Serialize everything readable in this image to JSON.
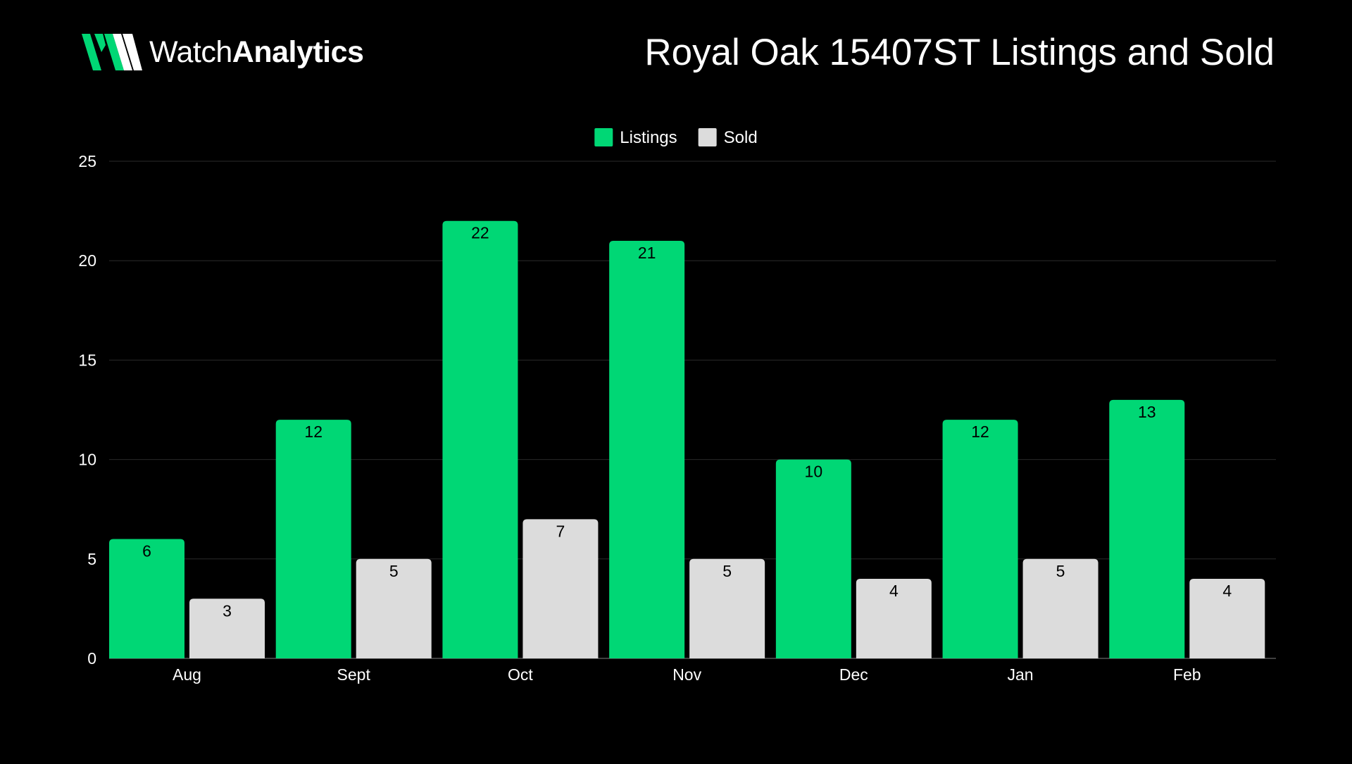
{
  "brand": {
    "name_light": "Watch",
    "name_bold": "Analytics",
    "accent": "#00D775"
  },
  "colors": {
    "background": "#000000",
    "listings": "#00D775",
    "sold": "#DCDCDC",
    "grid": "#2A2A2A",
    "text": "#FFFFFF"
  },
  "chart_data": {
    "type": "bar",
    "title": "Royal Oak 15407ST Listings and Sold",
    "xlabel": "",
    "ylabel": "",
    "categories": [
      "Aug",
      "Sept",
      "Oct",
      "Nov",
      "Dec",
      "Jan",
      "Feb"
    ],
    "series": [
      {
        "name": "Listings",
        "color": "#00D775",
        "values": [
          6,
          12,
          22,
          21,
          10,
          12,
          13
        ]
      },
      {
        "name": "Sold",
        "color": "#DCDCDC",
        "values": [
          3,
          5,
          7,
          5,
          4,
          5,
          4
        ]
      }
    ],
    "ylim": [
      0,
      25
    ],
    "yticks": [
      0,
      5,
      10,
      15,
      20,
      25
    ],
    "grid": true,
    "legend": "top-center",
    "data_labels": true
  }
}
